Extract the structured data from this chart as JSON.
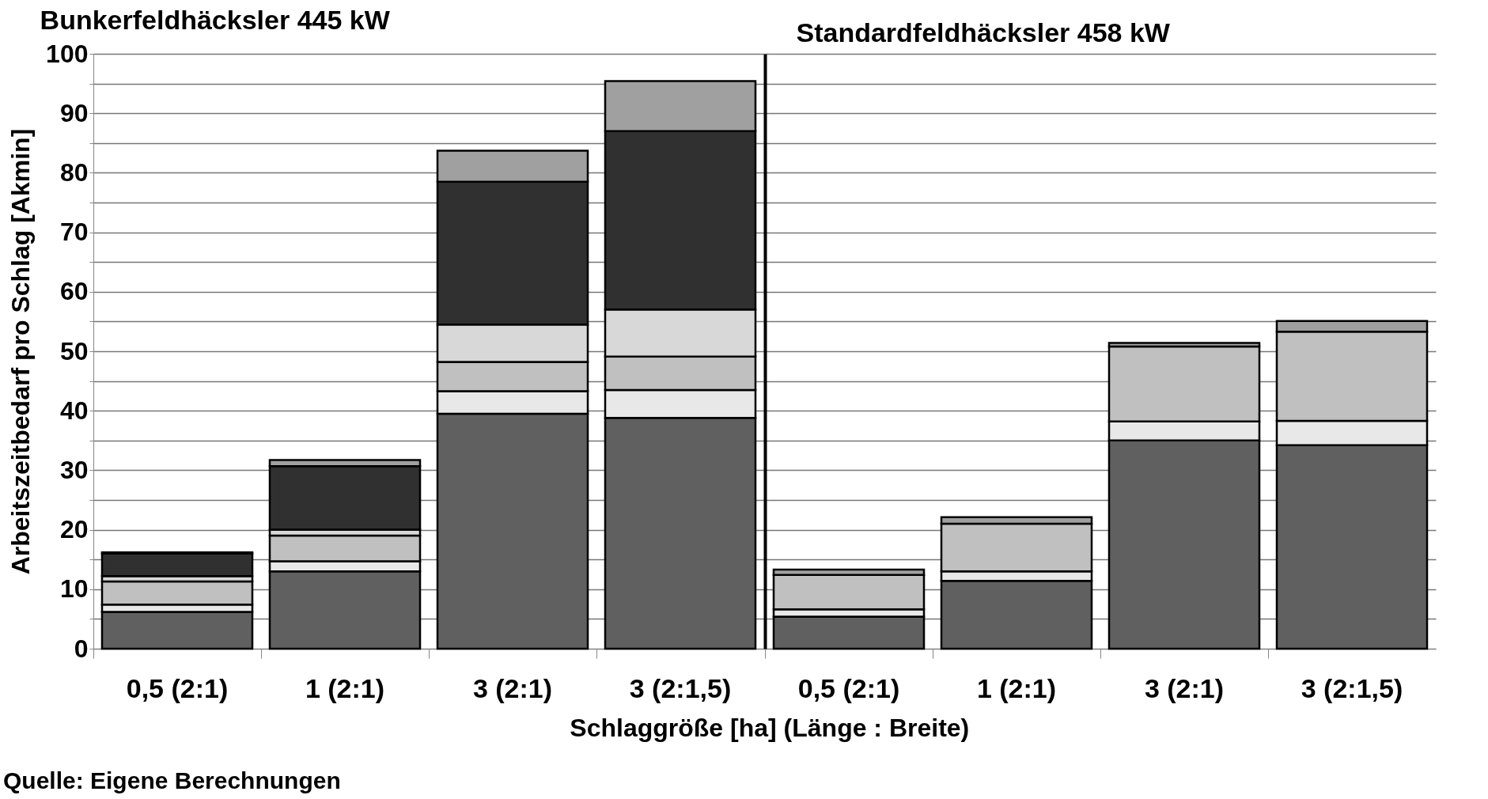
{
  "chart_data": [
    {
      "type": "bar",
      "title": "Bunkerfeldhäcksler 445 kW",
      "xlabel": "Schlaggröße [ha] (Länge : Breite)",
      "ylabel": "Arbeitszeitbedarf pro Schlag [Akmin]",
      "annotations": [
        "Quelle: Eigene Berechnungen"
      ],
      "categories": [
        "0,5 (2:1)",
        "1 (2:1)",
        "3 (2:1)",
        "3 (2:1,5)"
      ],
      "stacked": true,
      "series": [
        {
          "color": "#606060",
          "values": [
            6.2,
            13.0,
            39.5,
            38.8
          ]
        },
        {
          "color": "#e8e8e8",
          "values": [
            1.2,
            1.7,
            3.8,
            4.7
          ]
        },
        {
          "color": "#c0c0c0",
          "values": [
            3.9,
            4.3,
            4.9,
            5.6
          ]
        },
        {
          "color": "#d8d8d8",
          "values": [
            0.9,
            1.0,
            6.3,
            7.9
          ]
        },
        {
          "color": "#303030",
          "values": [
            3.8,
            10.7,
            24.0,
            30.0
          ]
        },
        {
          "color": "#a0a0a0",
          "values": [
            0.2,
            1.0,
            5.2,
            8.4
          ]
        }
      ],
      "ylim": [
        0,
        100
      ],
      "yticks": [
        0,
        {
          "value": 5,
          "label": null
        },
        10,
        {
          "value": 15,
          "label": null
        },
        20,
        {
          "value": 25,
          "label": null
        },
        30,
        {
          "value": 35,
          "label": null
        },
        40,
        {
          "value": 45,
          "label": null
        },
        50,
        {
          "value": 55,
          "label": null
        },
        60,
        {
          "value": 65,
          "label": null
        },
        70,
        {
          "value": 75,
          "label": null
        },
        80,
        {
          "value": 85,
          "label": null
        },
        90,
        {
          "value": 95,
          "label": null
        },
        100
      ],
      "grid": "y"
    },
    {
      "type": "bar",
      "title": "Standardfeldhäcksler 458 kW",
      "categories": [
        "0,5 (2:1)",
        "1 (2:1)",
        "3 (2:1)",
        "3 (2:1,5)"
      ],
      "stacked": true,
      "series": [
        {
          "color": "#606060",
          "values": [
            5.4,
            11.4,
            35.0,
            34.2
          ]
        },
        {
          "color": "#e8e8e8",
          "values": [
            1.2,
            1.6,
            3.2,
            4.1
          ]
        },
        {
          "color": "#c0c0c0",
          "values": [
            5.8,
            8.0,
            12.6,
            15.0
          ]
        },
        {
          "color": "#a0a0a0",
          "values": [
            0.9,
            1.1,
            0.6,
            1.8
          ]
        }
      ],
      "ylim": [
        0,
        100
      ],
      "yticks": [
        0,
        {
          "value": 5,
          "label": null
        },
        10,
        {
          "value": 15,
          "label": null
        },
        20,
        {
          "value": 25,
          "label": null
        },
        30,
        {
          "value": 35,
          "label": null
        },
        40,
        {
          "value": 45,
          "label": null
        },
        50,
        {
          "value": 55,
          "label": null
        },
        60,
        {
          "value": 65,
          "label": null
        },
        70,
        {
          "value": 75,
          "label": null
        },
        80,
        {
          "value": 85,
          "label": null
        },
        90,
        {
          "value": 95,
          "label": null
        },
        100
      ],
      "grid": "y",
      "tick_labels": "x"
    }
  ]
}
